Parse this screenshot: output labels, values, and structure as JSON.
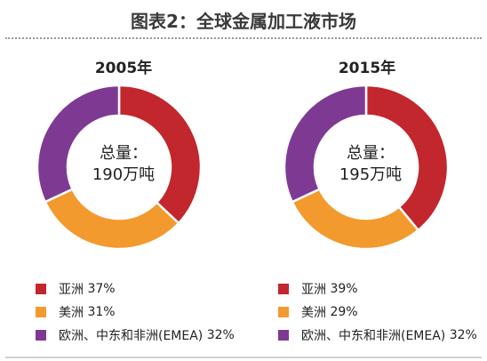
{
  "title": "图表2：全球金属加工液市场",
  "chart_data": [
    {
      "type": "pie",
      "title": "2005年",
      "center_label": [
        "总量：",
        "190万吨"
      ],
      "categories": [
        "亚洲",
        "美洲",
        "欧洲、中东和非洲(EMEA)"
      ],
      "values": [
        37,
        31,
        32
      ],
      "value_labels": [
        "37%",
        "31%",
        "32%"
      ],
      "colors": [
        "#c1272d",
        "#f29a2e",
        "#7e3a93"
      ]
    },
    {
      "type": "pie",
      "title": "2015年",
      "center_label": [
        "总量：",
        "195万吨"
      ],
      "categories": [
        "亚洲",
        "美洲",
        "欧洲、中东和非洲(EMEA)"
      ],
      "values": [
        39,
        29,
        32
      ],
      "value_labels": [
        "39%",
        "29%",
        "32%"
      ],
      "colors": [
        "#c1272d",
        "#f29a2e",
        "#7e3a93"
      ]
    }
  ]
}
